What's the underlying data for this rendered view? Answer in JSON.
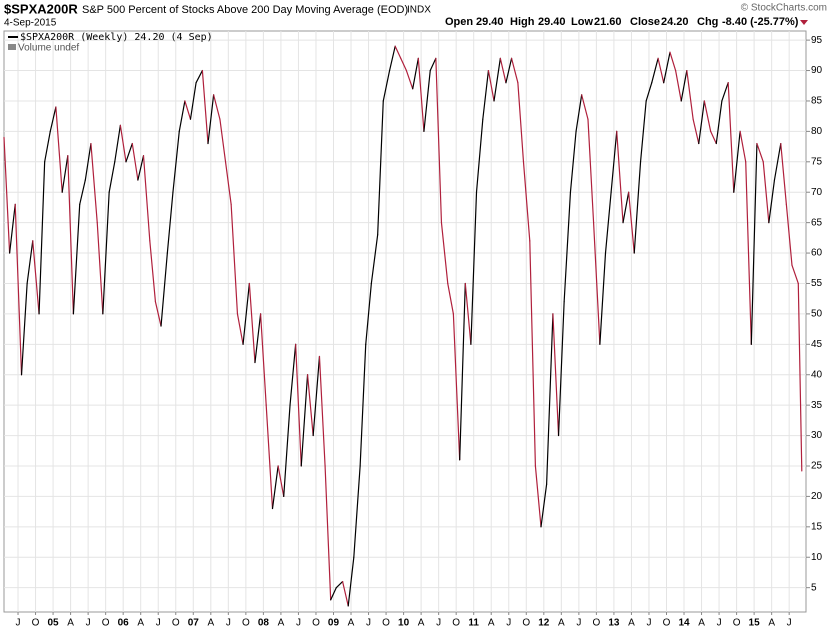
{
  "chart_data": {
    "type": "line",
    "symbol": "$SPXA200R",
    "title": "S&P 500 Percent of Stocks Above 200 Day Moving Average (EOD)",
    "exchange": "INDX",
    "date": "4-Sep-2015",
    "quote": [
      {
        "label": "Open",
        "value": "29.40"
      },
      {
        "label": "High",
        "value": "29.40"
      },
      {
        "label": "Low",
        "value": "21.60"
      },
      {
        "label": "Close",
        "value": "24.20"
      },
      {
        "label": "Chg",
        "value": "-8.40 (-25.77%)"
      }
    ],
    "credit": "© StockCharts.com",
    "volume_note": "Volume undef",
    "grid": true,
    "x": [
      2004.3,
      2004.38,
      2004.46,
      2004.55,
      2004.63,
      2004.71,
      2004.8,
      2004.88,
      2004.96,
      2005.04,
      2005.13,
      2005.21,
      2005.29,
      2005.38,
      2005.46,
      2005.54,
      2005.63,
      2005.71,
      2005.8,
      2005.88,
      2005.96,
      2006.04,
      2006.13,
      2006.21,
      2006.29,
      2006.38,
      2006.46,
      2006.54,
      2006.63,
      2006.71,
      2006.8,
      2006.88,
      2006.96,
      2007.04,
      2007.13,
      2007.21,
      2007.29,
      2007.38,
      2007.46,
      2007.54,
      2007.63,
      2007.71,
      2007.8,
      2007.88,
      2007.96,
      2008.04,
      2008.13,
      2008.21,
      2008.29,
      2008.38,
      2008.46,
      2008.54,
      2008.63,
      2008.71,
      2008.8,
      2008.88,
      2008.96,
      2009.04,
      2009.13,
      2009.21,
      2009.29,
      2009.38,
      2009.46,
      2009.54,
      2009.63,
      2009.71,
      2009.8,
      2009.88,
      2009.96,
      2010.04,
      2010.13,
      2010.21,
      2010.29,
      2010.38,
      2010.46,
      2010.54,
      2010.63,
      2010.71,
      2010.8,
      2010.88,
      2010.96,
      2011.04,
      2011.13,
      2011.21,
      2011.29,
      2011.38,
      2011.46,
      2011.54,
      2011.63,
      2011.71,
      2011.8,
      2011.88,
      2011.96,
      2012.04,
      2012.13,
      2012.21,
      2012.29,
      2012.38,
      2012.46,
      2012.54,
      2012.63,
      2012.71,
      2012.8,
      2012.88,
      2012.96,
      2013.04,
      2013.13,
      2013.21,
      2013.29,
      2013.38,
      2013.46,
      2013.54,
      2013.63,
      2013.71,
      2013.8,
      2013.88,
      2013.96,
      2014.04,
      2014.13,
      2014.21,
      2014.29,
      2014.38,
      2014.46,
      2014.54,
      2014.63,
      2014.71,
      2014.8,
      2014.88,
      2014.96,
      2015.04,
      2015.13,
      2015.21,
      2015.29,
      2015.38,
      2015.46,
      2015.54,
      2015.63,
      2015.68
    ],
    "series": [
      {
        "name": "$SPXA200R (Weekly) 24.20 (4 Sep)",
        "color": "#000000",
        "down_color": "#b0203c",
        "values": [
          79,
          60,
          68,
          40,
          55,
          62,
          50,
          75,
          80,
          84,
          70,
          76,
          50,
          68,
          72,
          78,
          65,
          50,
          70,
          75,
          81,
          75,
          78,
          72,
          76,
          62,
          52,
          48,
          60,
          70,
          80,
          85,
          82,
          88,
          90,
          78,
          86,
          82,
          75,
          68,
          50,
          45,
          55,
          42,
          50,
          35,
          18,
          25,
          20,
          35,
          45,
          25,
          40,
          30,
          43,
          25,
          3,
          5,
          6,
          2,
          10,
          25,
          45,
          55,
          63,
          85,
          90,
          94,
          92,
          90,
          87,
          92,
          80,
          90,
          92,
          65,
          55,
          50,
          26,
          55,
          45,
          70,
          82,
          90,
          85,
          92,
          88,
          92,
          88,
          75,
          62,
          25,
          15,
          22,
          50,
          30,
          52,
          70,
          80,
          86,
          82,
          65,
          45,
          60,
          70,
          80,
          65,
          70,
          60,
          75,
          85,
          88,
          92,
          88,
          93,
          90,
          85,
          90,
          82,
          78,
          85,
          80,
          78,
          85,
          88,
          70,
          80,
          75,
          45,
          78,
          75,
          65,
          72,
          78,
          68,
          58,
          55,
          24.2
        ]
      }
    ],
    "xlim": [
      2004.3,
      2015.74
    ],
    "ylim": [
      1,
      96.5
    ],
    "yticks": [
      5,
      10,
      15,
      20,
      25,
      30,
      35,
      40,
      45,
      50,
      55,
      60,
      65,
      70,
      75,
      80,
      85,
      90,
      95
    ],
    "xticks": [
      {
        "value": 2004.5,
        "label": "J"
      },
      {
        "value": 2004.75,
        "label": "O"
      },
      {
        "value": 2005,
        "label": "05"
      },
      {
        "value": 2005.25,
        "label": "A"
      },
      {
        "value": 2005.5,
        "label": "J"
      },
      {
        "value": 2005.75,
        "label": "O"
      },
      {
        "value": 2006,
        "label": "06"
      },
      {
        "value": 2006.25,
        "label": "A"
      },
      {
        "value": 2006.5,
        "label": "J"
      },
      {
        "value": 2006.75,
        "label": "O"
      },
      {
        "value": 2007,
        "label": "07"
      },
      {
        "value": 2007.25,
        "label": "A"
      },
      {
        "value": 2007.5,
        "label": "J"
      },
      {
        "value": 2007.75,
        "label": "O"
      },
      {
        "value": 2008,
        "label": "08"
      },
      {
        "value": 2008.25,
        "label": "A"
      },
      {
        "value": 2008.5,
        "label": "J"
      },
      {
        "value": 2008.75,
        "label": "O"
      },
      {
        "value": 2009,
        "label": "09"
      },
      {
        "value": 2009.25,
        "label": "A"
      },
      {
        "value": 2009.5,
        "label": "J"
      },
      {
        "value": 2009.75,
        "label": "O"
      },
      {
        "value": 2010,
        "label": "10"
      },
      {
        "value": 2010.25,
        "label": "A"
      },
      {
        "value": 2010.5,
        "label": "J"
      },
      {
        "value": 2010.75,
        "label": "O"
      },
      {
        "value": 2011,
        "label": "11"
      },
      {
        "value": 2011.25,
        "label": "A"
      },
      {
        "value": 2011.5,
        "label": "J"
      },
      {
        "value": 2011.75,
        "label": "O"
      },
      {
        "value": 2012,
        "label": "12"
      },
      {
        "value": 2012.25,
        "label": "A"
      },
      {
        "value": 2012.5,
        "label": "J"
      },
      {
        "value": 2012.75,
        "label": "O"
      },
      {
        "value": 2013,
        "label": "13"
      },
      {
        "value": 2013.25,
        "label": "A"
      },
      {
        "value": 2013.5,
        "label": "J"
      },
      {
        "value": 2013.75,
        "label": "O"
      },
      {
        "value": 2014,
        "label": "14"
      },
      {
        "value": 2014.25,
        "label": "A"
      },
      {
        "value": 2014.5,
        "label": "J"
      },
      {
        "value": 2014.75,
        "label": "O"
      },
      {
        "value": 2015,
        "label": "15"
      },
      {
        "value": 2015.25,
        "label": "A"
      },
      {
        "value": 2015.5,
        "label": "J"
      }
    ]
  }
}
